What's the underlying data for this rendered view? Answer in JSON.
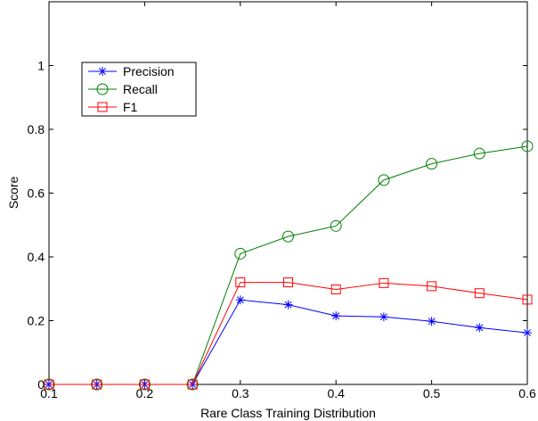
{
  "chart_data": {
    "type": "line",
    "title": "",
    "xlabel": "Rare Class Training Distribution",
    "ylabel": "Score",
    "xlim": [
      0.1,
      0.6
    ],
    "ylim": [
      0,
      1.2
    ],
    "grid": false,
    "legend_position": "top-left",
    "x": [
      0.1,
      0.15,
      0.2,
      0.25,
      0.3,
      0.35,
      0.4,
      0.45,
      0.5,
      0.55,
      0.6
    ],
    "x_ticks": [
      "0.1",
      "0.2",
      "0.3",
      "0.4",
      "0.5",
      "0.6"
    ],
    "y_ticks": [
      "0",
      "0.2",
      "0.4",
      "0.6",
      "0.8",
      "1"
    ],
    "series": [
      {
        "name": "Precision",
        "color": "#0000ff",
        "marker": "asterisk",
        "values": [
          0,
          0,
          0,
          0,
          0.265,
          0.25,
          0.215,
          0.212,
          0.198,
          0.178,
          0.162
        ]
      },
      {
        "name": "Recall",
        "color": "#008000",
        "marker": "circle",
        "values": [
          0,
          0,
          0,
          0,
          0.41,
          0.464,
          0.497,
          0.641,
          0.692,
          0.724,
          0.747
        ]
      },
      {
        "name": "F1",
        "color": "#ff0000",
        "marker": "square",
        "values": [
          0,
          0,
          0,
          0,
          0.32,
          0.32,
          0.298,
          0.318,
          0.308,
          0.286,
          0.266
        ]
      }
    ]
  }
}
